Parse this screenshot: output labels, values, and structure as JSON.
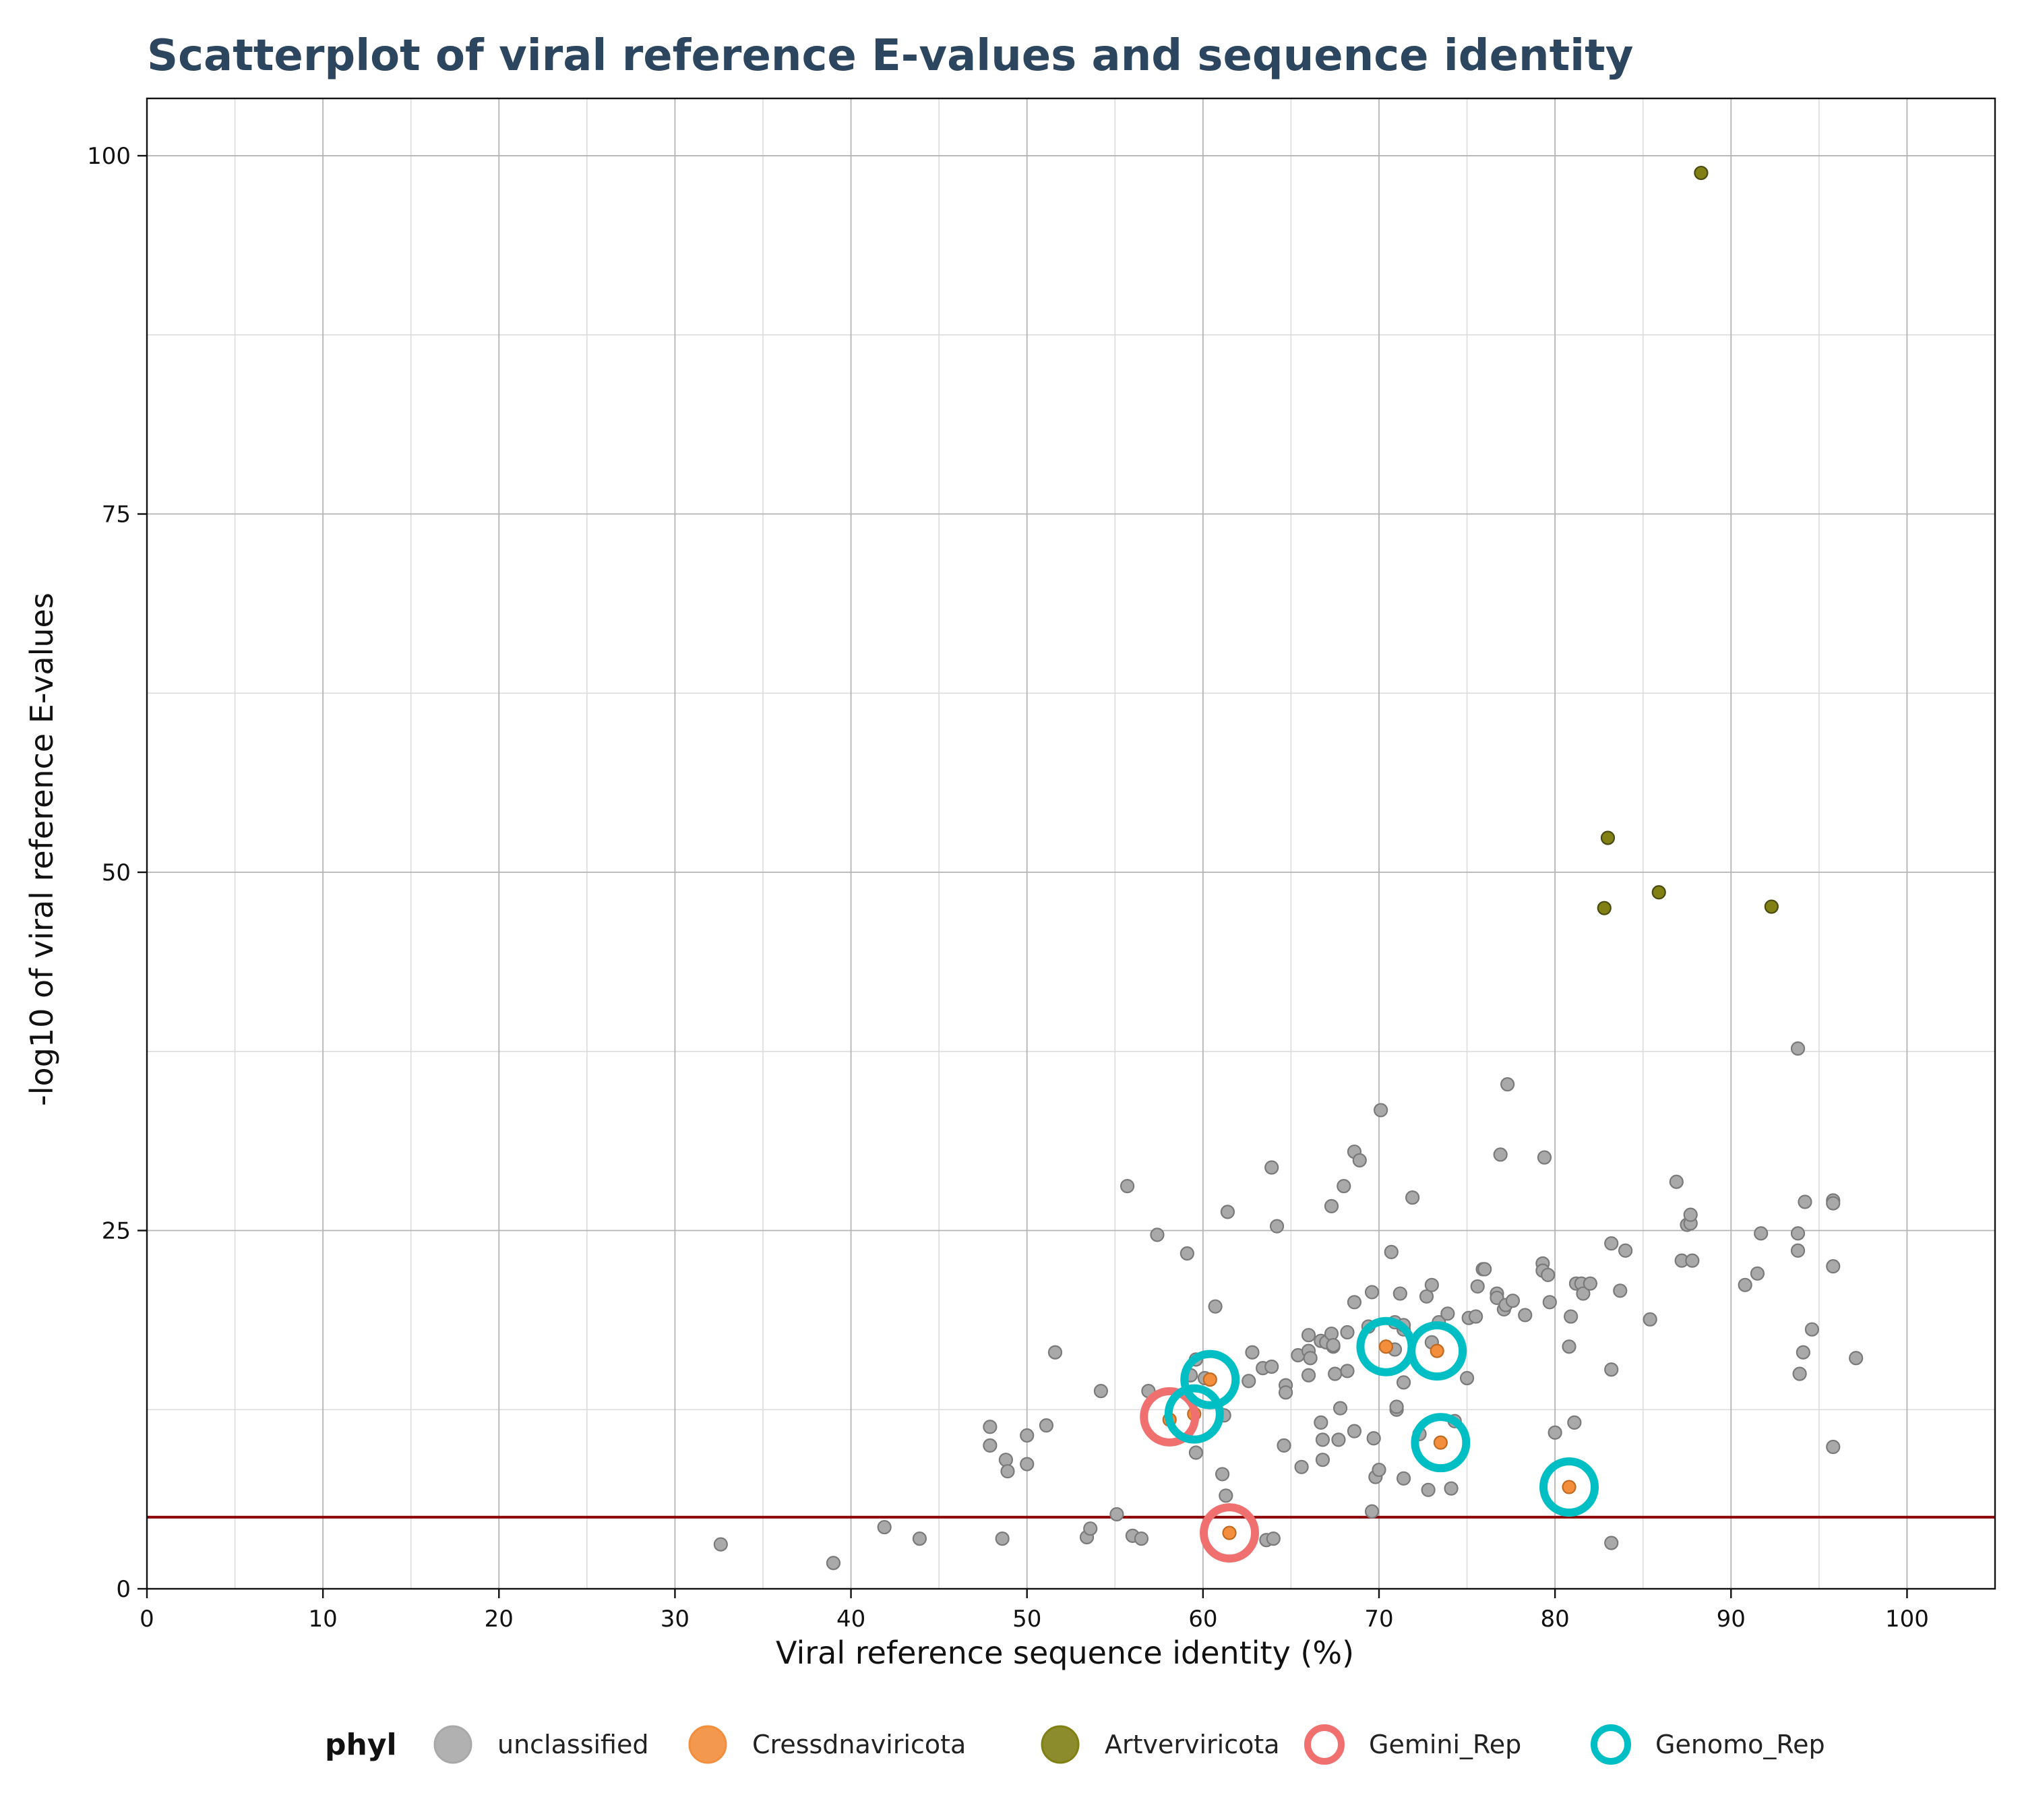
{
  "chart_data": {
    "type": "scatter",
    "title": "Scatterplot of viral reference E-values and sequence identity",
    "xlabel": "Viral reference sequence identity (%)",
    "ylabel": "-log10 of viral reference E-values",
    "xlim": [
      0,
      105
    ],
    "ylim": [
      0,
      104
    ],
    "x_ticks": [
      0,
      10,
      20,
      30,
      40,
      50,
      60,
      70,
      80,
      90,
      100
    ],
    "y_ticks": [
      0,
      25,
      50,
      75,
      100
    ],
    "grid": true,
    "threshold_line": {
      "y": 5,
      "color": "#8b0000"
    },
    "legend": {
      "title": "phyl",
      "position": "bottom",
      "entries": [
        {
          "label": "unclassified",
          "style": "filled",
          "color": "#a9a9a9"
        },
        {
          "label": "Cressdnaviricota",
          "style": "filled",
          "color": "#f28e3c"
        },
        {
          "label": "Artverviricota",
          "style": "filled",
          "color": "#808015"
        },
        {
          "label": "Gemini_Rep",
          "style": "ring",
          "color": "#f07070"
        },
        {
          "label": "Genomo_Rep",
          "style": "ring",
          "color": "#00bfc4"
        }
      ]
    },
    "colors": {
      "unclassified": "#a9a9a9",
      "Cressdnaviricota": "#f28e3c",
      "Artverviricota": "#808015",
      "Gemini_Rep": "#f07070",
      "Genomo_Rep": "#00bfc4",
      "title": "#2c4660"
    },
    "series": [
      {
        "name": "unclassified",
        "points": [
          [
            32.6,
            3.1
          ],
          [
            39.0,
            1.8
          ],
          [
            41.9,
            4.3
          ],
          [
            43.9,
            3.5
          ],
          [
            48.6,
            3.5
          ],
          [
            47.9,
            11.3
          ],
          [
            47.9,
            10.0
          ],
          [
            48.8,
            9.0
          ],
          [
            48.9,
            8.2
          ],
          [
            50.0,
            10.7
          ],
          [
            50.0,
            8.7
          ],
          [
            51.1,
            11.4
          ],
          [
            51.6,
            16.5
          ],
          [
            53.4,
            3.6
          ],
          [
            53.6,
            4.2
          ],
          [
            54.2,
            13.8
          ],
          [
            55.1,
            5.2
          ],
          [
            55.7,
            28.1
          ],
          [
            56.0,
            3.7
          ],
          [
            56.5,
            3.5
          ],
          [
            56.9,
            13.8
          ],
          [
            57.4,
            24.7
          ],
          [
            59.1,
            23.4
          ],
          [
            59.3,
            14.9
          ],
          [
            59.6,
            16.0
          ],
          [
            59.6,
            9.5
          ],
          [
            60.1,
            14.7
          ],
          [
            60.7,
            19.7
          ],
          [
            61.1,
            8.0
          ],
          [
            61.2,
            12.1
          ],
          [
            61.3,
            6.5
          ],
          [
            61.4,
            26.3
          ],
          [
            62.6,
            14.5
          ],
          [
            62.8,
            16.5
          ],
          [
            63.4,
            15.4
          ],
          [
            63.6,
            3.4
          ],
          [
            63.9,
            29.4
          ],
          [
            63.9,
            15.5
          ],
          [
            64.0,
            3.5
          ],
          [
            64.2,
            25.3
          ],
          [
            64.6,
            10.0
          ],
          [
            64.7,
            14.2
          ],
          [
            64.7,
            13.7
          ],
          [
            65.4,
            16.3
          ],
          [
            65.6,
            8.5
          ],
          [
            66.0,
            17.7
          ],
          [
            66.0,
            14.9
          ],
          [
            66.0,
            16.6
          ],
          [
            66.1,
            16.1
          ],
          [
            66.7,
            17.3
          ],
          [
            66.7,
            11.6
          ],
          [
            66.8,
            10.4
          ],
          [
            66.8,
            9.0
          ],
          [
            67.0,
            17.2
          ],
          [
            67.3,
            26.7
          ],
          [
            67.3,
            17.8
          ],
          [
            67.4,
            16.9
          ],
          [
            67.4,
            17.0
          ],
          [
            67.5,
            15.0
          ],
          [
            67.7,
            10.4
          ],
          [
            67.8,
            12.6
          ],
          [
            68.0,
            28.1
          ],
          [
            68.2,
            17.9
          ],
          [
            68.2,
            15.2
          ],
          [
            68.6,
            20.0
          ],
          [
            68.6,
            30.5
          ],
          [
            68.6,
            11.0
          ],
          [
            68.9,
            29.9
          ],
          [
            69.4,
            18.3
          ],
          [
            69.6,
            5.4
          ],
          [
            69.6,
            20.7
          ],
          [
            69.7,
            10.5
          ],
          [
            69.8,
            7.8
          ],
          [
            70.0,
            8.3
          ],
          [
            70.1,
            33.4
          ],
          [
            70.7,
            23.5
          ],
          [
            70.9,
            18.6
          ],
          [
            70.9,
            16.7
          ],
          [
            71.0,
            12.5
          ],
          [
            71.0,
            12.7
          ],
          [
            71.2,
            20.6
          ],
          [
            71.4,
            18.1
          ],
          [
            71.4,
            18.4
          ],
          [
            71.4,
            14.4
          ],
          [
            71.4,
            7.7
          ],
          [
            71.9,
            27.3
          ],
          [
            72.3,
            10.8
          ],
          [
            72.7,
            20.4
          ],
          [
            72.8,
            6.9
          ],
          [
            73.0,
            21.2
          ],
          [
            73.0,
            17.2
          ],
          [
            73.4,
            18.6
          ],
          [
            73.9,
            19.2
          ],
          [
            74.1,
            7.0
          ],
          [
            74.3,
            11.7
          ],
          [
            75.0,
            14.7
          ],
          [
            75.1,
            18.9
          ],
          [
            75.5,
            19.0
          ],
          [
            75.6,
            21.1
          ],
          [
            75.9,
            22.3
          ],
          [
            76.0,
            22.3
          ],
          [
            76.7,
            20.6
          ],
          [
            76.7,
            20.3
          ],
          [
            76.9,
            30.3
          ],
          [
            77.1,
            19.5
          ],
          [
            77.2,
            19.8
          ],
          [
            77.3,
            35.2
          ],
          [
            77.6,
            20.1
          ],
          [
            78.3,
            19.1
          ],
          [
            79.3,
            22.7
          ],
          [
            79.3,
            22.2
          ],
          [
            79.4,
            30.1
          ],
          [
            79.6,
            21.9
          ],
          [
            79.7,
            20.0
          ],
          [
            80.0,
            10.9
          ],
          [
            80.8,
            16.9
          ],
          [
            80.9,
            19.0
          ],
          [
            81.1,
            11.6
          ],
          [
            81.2,
            21.3
          ],
          [
            81.5,
            21.3
          ],
          [
            81.6,
            20.6
          ],
          [
            82.0,
            21.3
          ],
          [
            83.2,
            24.1
          ],
          [
            83.2,
            15.3
          ],
          [
            83.2,
            3.2
          ],
          [
            83.7,
            20.8
          ],
          [
            84.0,
            23.6
          ],
          [
            85.4,
            18.8
          ],
          [
            86.9,
            28.4
          ],
          [
            87.2,
            22.9
          ],
          [
            87.5,
            25.4
          ],
          [
            87.7,
            25.5
          ],
          [
            87.7,
            26.1
          ],
          [
            87.8,
            22.9
          ],
          [
            90.8,
            21.2
          ],
          [
            91.5,
            22.0
          ],
          [
            91.7,
            24.8
          ],
          [
            93.8,
            37.7
          ],
          [
            93.8,
            24.8
          ],
          [
            93.8,
            23.6
          ],
          [
            93.9,
            15.0
          ],
          [
            94.1,
            16.5
          ],
          [
            94.2,
            27.0
          ],
          [
            94.6,
            18.1
          ],
          [
            95.8,
            27.1
          ],
          [
            95.8,
            26.9
          ],
          [
            95.8,
            22.5
          ],
          [
            95.8,
            9.9
          ],
          [
            97.1,
            16.1
          ]
        ]
      },
      {
        "name": "Cressdnaviricota",
        "points": [
          [
            58.1,
            11.8
          ],
          [
            59.5,
            12.2
          ],
          [
            60.4,
            14.6
          ],
          [
            61.5,
            3.9
          ],
          [
            70.4,
            16.9
          ],
          [
            73.3,
            16.6
          ],
          [
            73.5,
            10.2
          ],
          [
            80.8,
            7.1
          ]
        ]
      },
      {
        "name": "Artverviricota",
        "points": [
          [
            88.3,
            98.8
          ],
          [
            83.0,
            52.4
          ],
          [
            85.9,
            48.6
          ],
          [
            82.8,
            47.5
          ],
          [
            92.3,
            47.6
          ]
        ]
      },
      {
        "name": "Gemini_Rep",
        "points": [
          [
            58.1,
            12.0
          ],
          [
            61.5,
            3.9
          ]
        ]
      },
      {
        "name": "Genomo_Rep",
        "points": [
          [
            59.5,
            12.2
          ],
          [
            60.4,
            14.6
          ],
          [
            70.4,
            16.9
          ],
          [
            73.3,
            16.6
          ],
          [
            73.5,
            10.2
          ],
          [
            80.8,
            7.1
          ]
        ]
      }
    ]
  }
}
